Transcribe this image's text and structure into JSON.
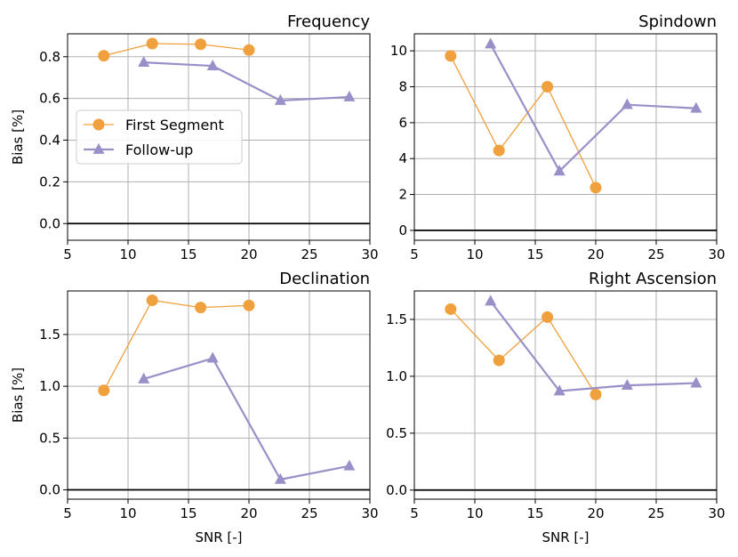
{
  "colors": {
    "first_segment": "#f0a03c",
    "follow_up": "#9a8fc8",
    "grid": "#b0b0b0",
    "zero_line": "#000000"
  },
  "legend": {
    "location": "center-left of top-left panel",
    "entries": [
      {
        "label": "First Segment",
        "marker": "circle",
        "color": "#f0a03c"
      },
      {
        "label": "Follow-up",
        "marker": "triangle",
        "color": "#9a8fc8"
      }
    ]
  },
  "chart_data": [
    {
      "type": "line",
      "title": "Frequency",
      "xlabel": "",
      "ylabel": "Bias [%]",
      "xlim": [
        5,
        30
      ],
      "ylim": [
        -0.08,
        0.91
      ],
      "xticks": [
        5,
        10,
        15,
        20,
        25,
        30
      ],
      "yticks": [
        0.0,
        0.2,
        0.4,
        0.6,
        0.8
      ],
      "ytick_labels": [
        "0.0",
        "0.2",
        "0.4",
        "0.6",
        "0.8"
      ],
      "grid": true,
      "series": [
        {
          "name": "First Segment",
          "marker": "circle",
          "x": [
            8,
            12,
            16,
            20
          ],
          "values": [
            0.805,
            0.863,
            0.86,
            0.832
          ]
        },
        {
          "name": "Follow-up",
          "marker": "triangle",
          "x": [
            11.3,
            17,
            22.6,
            28.3
          ],
          "values": [
            0.773,
            0.756,
            0.59,
            0.607
          ]
        }
      ]
    },
    {
      "type": "line",
      "title": "Spindown",
      "xlabel": "",
      "ylabel": "",
      "xlim": [
        5,
        30
      ],
      "ylim": [
        -0.55,
        10.95
      ],
      "xticks": [
        5,
        10,
        15,
        20,
        25,
        30
      ],
      "yticks": [
        0,
        2,
        4,
        6,
        8,
        10
      ],
      "ytick_labels": [
        "0",
        "2",
        "4",
        "6",
        "8",
        "10"
      ],
      "grid": true,
      "series": [
        {
          "name": "First Segment",
          "marker": "circle",
          "x": [
            8,
            12,
            16,
            20
          ],
          "values": [
            9.72,
            4.45,
            8.0,
            2.38
          ]
        },
        {
          "name": "Follow-up",
          "marker": "triangle",
          "x": [
            11.3,
            17,
            22.6,
            28.3
          ],
          "values": [
            10.38,
            3.3,
            7.0,
            6.8
          ]
        }
      ]
    },
    {
      "type": "line",
      "title": "Declination",
      "xlabel": "SNR [-]",
      "ylabel": "Bias [%]",
      "xlim": [
        5,
        30
      ],
      "ylim": [
        -0.09,
        1.92
      ],
      "xticks": [
        5,
        10,
        15,
        20,
        25,
        30
      ],
      "yticks": [
        0.0,
        0.5,
        1.0,
        1.5
      ],
      "ytick_labels": [
        "0.0",
        "0.5",
        "1.0",
        "1.5"
      ],
      "grid": true,
      "series": [
        {
          "name": "First Segment",
          "marker": "circle",
          "x": [
            8,
            12,
            16,
            20
          ],
          "values": [
            0.96,
            1.83,
            1.76,
            1.78
          ]
        },
        {
          "name": "Follow-up",
          "marker": "triangle",
          "x": [
            11.3,
            17,
            22.6,
            28.3
          ],
          "values": [
            1.07,
            1.27,
            0.1,
            0.23
          ]
        }
      ]
    },
    {
      "type": "line",
      "title": "Right Ascension",
      "xlabel": "SNR [-]",
      "ylabel": "",
      "xlim": [
        5,
        30
      ],
      "ylim": [
        -0.08,
        1.75
      ],
      "xticks": [
        5,
        10,
        15,
        20,
        25,
        30
      ],
      "yticks": [
        0.0,
        0.5,
        1.0,
        1.5
      ],
      "ytick_labels": [
        "0.0",
        "0.5",
        "1.0",
        "1.5"
      ],
      "grid": true,
      "series": [
        {
          "name": "First Segment",
          "marker": "circle",
          "x": [
            8,
            12,
            16,
            20
          ],
          "values": [
            1.59,
            1.14,
            1.52,
            0.84
          ]
        },
        {
          "name": "Follow-up",
          "marker": "triangle",
          "x": [
            11.3,
            17,
            22.6,
            28.3
          ],
          "values": [
            1.66,
            0.87,
            0.92,
            0.94
          ]
        }
      ]
    }
  ]
}
